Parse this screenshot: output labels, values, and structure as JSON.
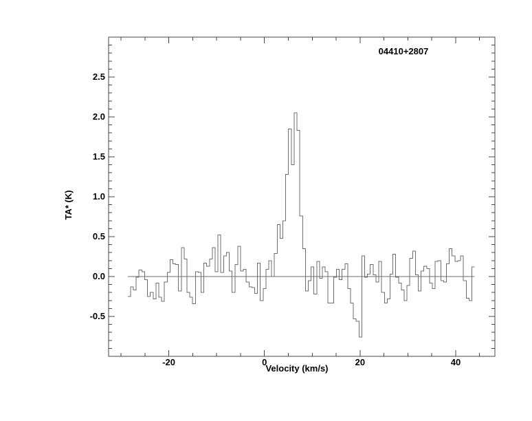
{
  "chart_data": {
    "type": "line",
    "style": "histogram-step-spectrum",
    "title": "04410+2807",
    "xlabel": "Velocity (km/s)",
    "ylabel": "TA* (K)",
    "xlim": [
      -32.6,
      48.2
    ],
    "ylim": [
      -1.0,
      3.0
    ],
    "grid": false,
    "ticks_all_four_sides": true,
    "x_major_ticks": [
      -20,
      0,
      20,
      40
    ],
    "x_major_labels": [
      "-20",
      "0",
      "20",
      "40"
    ],
    "x_minor_step": 5,
    "y_major_ticks": [
      -0.5,
      0.0,
      0.5,
      1.0,
      1.5,
      2.0,
      2.5
    ],
    "y_major_labels": [
      "-0.5",
      "0.0",
      "0.5",
      "1.0",
      "1.5",
      "2.0",
      "2.5"
    ],
    "y_minor_step": 0.1,
    "zero_line": {
      "y": 0.0,
      "v_start": -28.6,
      "v_end": 43.97
    },
    "annotation": {
      "text": "04410+2807",
      "v": 28.9,
      "t": 2.78
    },
    "series": [
      {
        "name": "spectrum",
        "v_start": -28.6,
        "dv": 0.59,
        "peak_value": 2.05,
        "peak_velocity": 6.5,
        "values": [
          -0.25,
          -0.13,
          -0.17,
          -0.01,
          0.08,
          0.06,
          -0.04,
          -0.25,
          -0.2,
          -0.28,
          -0.08,
          -0.26,
          -0.31,
          -0.07,
          0.05,
          0.21,
          0.16,
          0.15,
          -0.18,
          0.36,
          0.22,
          -0.2,
          -0.26,
          -0.34,
          0.06,
          0.05,
          -0.2,
          0.17,
          0.13,
          0.22,
          0.36,
          0.06,
          0.52,
          0.05,
          0.26,
          0.3,
          0.07,
          -0.2,
          0.15,
          0.38,
          0.07,
          0.09,
          -0.07,
          -0.13,
          -0.14,
          -0.21,
          0.17,
          -0.3,
          -0.15,
          0.09,
          0.2,
          0.0,
          0.29,
          0.65,
          0.48,
          0.7,
          1.28,
          1.85,
          1.4,
          2.05,
          1.83,
          0.76,
          0.35,
          -0.18,
          -0.05,
          0.12,
          -0.22,
          0.19,
          -0.02,
          0.12,
          0.06,
          -0.33,
          -0.33,
          -0.01,
          0.09,
          -0.04,
          0.09,
          0.16,
          -0.15,
          -0.33,
          -0.53,
          -0.56,
          -0.76,
          0.26,
          -0.01,
          0.03,
          0.15,
          0.02,
          -0.07,
          0.19,
          -0.2,
          -0.33,
          -0.28,
          0.03,
          0.28,
          -0.01,
          -0.08,
          -0.17,
          -0.3,
          -0.11,
          0.23,
          0.32,
          0.02,
          -0.18,
          0.07,
          0.13,
          0.1,
          -0.08,
          -0.15,
          0.19,
          0.2,
          -0.05,
          -0.07,
          0.16,
          0.35,
          0.26,
          0.19,
          0.2,
          0.26,
          -0.05,
          -0.27,
          -0.3,
          0.12
        ]
      }
    ],
    "colors": {
      "background": "#ffffff",
      "axis": "#444444",
      "data_line": "#6e6e6e",
      "text": "#000000"
    }
  }
}
